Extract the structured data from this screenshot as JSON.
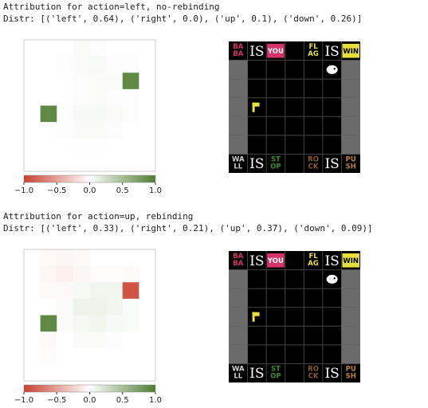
{
  "vlim": [
    -1,
    1
  ],
  "cmap": [
    "#c8412f",
    "#ffffff",
    "#4e7d2f"
  ],
  "ticks": [
    {
      "value": -1,
      "label": "−1.0"
    },
    {
      "value": -0.5,
      "label": "−0.5"
    },
    {
      "value": 0,
      "label": "0.0"
    },
    {
      "value": 0.5,
      "label": "0.5"
    },
    {
      "value": 1,
      "label": "1.0"
    }
  ],
  "panels": [
    {
      "title": "Attribution for action=left, no-rebinding",
      "distr": "Distr: [('left', 0.64), ('right', 0.0), ('up', 0.1), ('down', 0.26)]",
      "heatmap": [
        [
          0,
          0,
          0,
          0.03,
          0.02,
          0,
          0,
          0
        ],
        [
          0,
          0,
          0.02,
          0.03,
          0.04,
          0.02,
          0.02,
          0
        ],
        [
          0,
          0,
          0,
          0.02,
          0.03,
          0.03,
          0.9,
          0
        ],
        [
          0,
          0,
          0,
          0.02,
          0.03,
          0.02,
          0.02,
          0
        ],
        [
          0,
          0.9,
          0.02,
          0.05,
          0.05,
          0.03,
          0.02,
          0
        ],
        [
          0,
          0,
          0.02,
          0.03,
          0.03,
          0.02,
          0,
          0
        ],
        [
          0,
          0,
          0,
          0.01,
          0.01,
          0,
          0,
          0
        ],
        [
          0,
          0,
          0,
          0,
          0,
          0,
          0,
          0
        ]
      ],
      "game": [
        [
          {
            "text": [
              "BA",
              "BA"
            ],
            "fg": "#d6336a"
          },
          {
            "is": "IS"
          },
          {
            "text": [
              "YOU"
            ],
            "fg": "#fff",
            "bg": "#d6336a"
          },
          null,
          {
            "text": [
              "FL",
              "AG"
            ],
            "fg": "#e8e03a"
          },
          {
            "is": "IS"
          },
          {
            "text": [
              "WIN"
            ],
            "fg": "#000",
            "bg": "#e8e03a"
          }
        ],
        [
          {
            "kind": "wall"
          },
          null,
          null,
          null,
          null,
          {
            "kind": "baba"
          },
          {
            "kind": "wall"
          }
        ],
        [
          {
            "kind": "wall"
          },
          null,
          null,
          null,
          null,
          null,
          {
            "kind": "wall"
          }
        ],
        [
          {
            "kind": "wall"
          },
          {
            "kind": "flag"
          },
          null,
          null,
          null,
          null,
          {
            "kind": "wall"
          }
        ],
        [
          {
            "kind": "wall"
          },
          null,
          null,
          null,
          null,
          null,
          {
            "kind": "wall"
          }
        ],
        [
          {
            "kind": "wall"
          },
          null,
          null,
          null,
          null,
          null,
          {
            "kind": "wall"
          }
        ],
        [
          {
            "text": [
              "WA",
              "LL"
            ],
            "fg": "#cfcfcf"
          },
          {
            "is": "IS"
          },
          {
            "text": [
              "ST",
              "OP"
            ],
            "fg": "#3f8a2c"
          },
          null,
          {
            "text": [
              "RO",
              "CK"
            ],
            "fg": "#8a5a2a"
          },
          {
            "is": "IS"
          },
          {
            "text": [
              "PU",
              "SH"
            ],
            "fg": "#c08040"
          }
        ]
      ]
    },
    {
      "title": "Attribution for action=up, rebinding",
      "distr": "Distr: [('left', 0.33), ('right', 0.21), ('up', 0.37), ('down', 0.09)]",
      "heatmap": [
        [
          0,
          -0.03,
          -0.05,
          -0.03,
          0,
          0,
          0,
          0
        ],
        [
          0,
          -0.05,
          -0.08,
          -0.05,
          -0.02,
          -0.02,
          -0.03,
          0
        ],
        [
          0,
          -0.03,
          -0.03,
          0.05,
          0.08,
          0.08,
          -0.9,
          0
        ],
        [
          0,
          0,
          0.03,
          0.1,
          0.1,
          0.08,
          0.04,
          0
        ],
        [
          0,
          0.9,
          0.03,
          0.06,
          0.08,
          0.05,
          0.04,
          0
        ],
        [
          0,
          -0.03,
          0,
          0.03,
          0.03,
          0.02,
          0,
          0
        ],
        [
          0,
          -0.02,
          0,
          0,
          0,
          0,
          0,
          0
        ],
        [
          0,
          0,
          0,
          0,
          0,
          0,
          0,
          0
        ]
      ],
      "game": [
        [
          {
            "text": [
              "BA",
              "BA"
            ],
            "fg": "#d6336a"
          },
          {
            "is": "IS"
          },
          {
            "text": [
              "YOU"
            ],
            "fg": "#fff",
            "bg": "#d6336a"
          },
          null,
          {
            "text": [
              "FL",
              "AG"
            ],
            "fg": "#e8e03a"
          },
          {
            "is": "IS"
          },
          {
            "text": [
              "WIN"
            ],
            "fg": "#000",
            "bg": "#e8e03a"
          }
        ],
        [
          {
            "kind": "wall"
          },
          null,
          null,
          null,
          null,
          {
            "kind": "baba"
          },
          {
            "kind": "wall"
          }
        ],
        [
          {
            "kind": "wall"
          },
          null,
          null,
          null,
          null,
          null,
          {
            "kind": "wall"
          }
        ],
        [
          {
            "kind": "wall"
          },
          {
            "kind": "flag"
          },
          null,
          null,
          null,
          null,
          {
            "kind": "wall"
          }
        ],
        [
          {
            "kind": "wall"
          },
          null,
          null,
          null,
          null,
          null,
          {
            "kind": "wall"
          }
        ],
        [
          {
            "kind": "wall"
          },
          null,
          null,
          null,
          null,
          null,
          {
            "kind": "wall"
          }
        ],
        [
          {
            "text": [
              "WA",
              "LL"
            ],
            "fg": "#cfcfcf"
          },
          {
            "is": "IS"
          },
          {
            "text": [
              "ST",
              "OP"
            ],
            "fg": "#3f8a2c"
          },
          null,
          {
            "text": [
              "RO",
              "CK"
            ],
            "fg": "#8a5a2a"
          },
          {
            "is": "IS"
          },
          {
            "text": [
              "PU",
              "SH"
            ],
            "fg": "#c08040"
          }
        ]
      ]
    }
  ]
}
